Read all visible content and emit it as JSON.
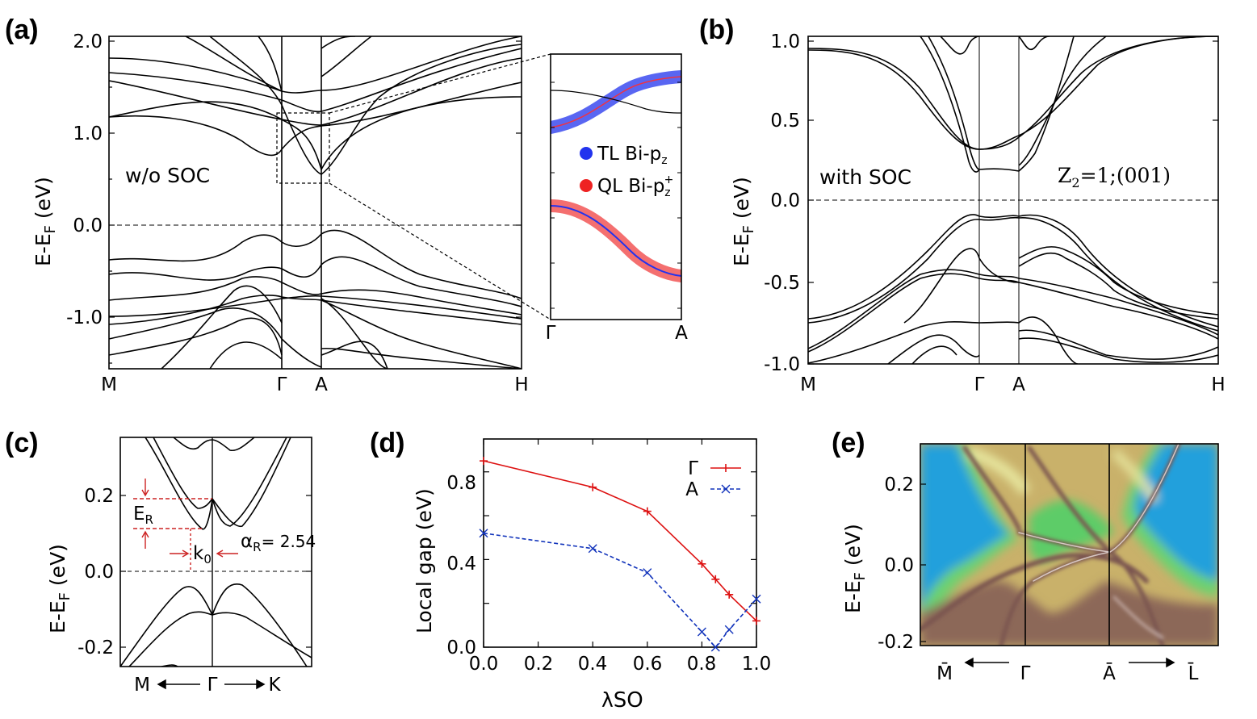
{
  "panels": {
    "a": {
      "label": "(a)",
      "ylabel": "E-E",
      "ylabel_sub": "F",
      "ylabel_unit": " (eV)",
      "annotation": "w/o SOC",
      "kpoints": [
        "M",
        "Γ",
        "A",
        "H"
      ],
      "yticks": [
        "2.0",
        "1.0",
        "0.0",
        "-1.0"
      ],
      "inset": {
        "kpoints": [
          "Γ",
          "A"
        ],
        "legend": [
          {
            "name": "TL Bi-p",
            "sub": "z",
            "sup": "",
            "color": "#2233ee"
          },
          {
            "name": "QL Bi-p",
            "sub": "z",
            "sup": "+",
            "color": "#ee2222"
          }
        ]
      }
    },
    "b": {
      "label": "(b)",
      "ylabel": "E-E",
      "ylabel_sub": "F",
      "ylabel_unit": " (eV)",
      "annotation": "with SOC",
      "z2_label": "Z",
      "z2_sub": "2",
      "z2_rest": "=1;(001)",
      "kpoints": [
        "M",
        "Γ",
        "A",
        "H"
      ],
      "yticks": [
        "1.0",
        "0.5",
        "0.0",
        "-0.5",
        "-1.0"
      ]
    },
    "c": {
      "label": "(c)",
      "ylabel": "E-E",
      "ylabel_sub": "F",
      "ylabel_unit": " (eV)",
      "yticks": [
        "0.2",
        "0.0",
        "-0.2"
      ],
      "kpoints": [
        "M",
        "Γ",
        "K"
      ],
      "er_label": "E",
      "er_sub": "R",
      "k0_label": "k",
      "k0_sub": "0",
      "alpha_label": "α",
      "alpha_sub": "R",
      "alpha_value": "= 2.54"
    },
    "d": {
      "label": "(d)",
      "ylabel": "Local gap (eV)",
      "xlabel": "λ",
      "xlabel_sub": "SO",
      "xticks": [
        "0.0",
        "0.2",
        "0.4",
        "0.6",
        "0.8",
        "1.0"
      ],
      "yticks": [
        "0.0",
        "0.4",
        "0.8"
      ]
    },
    "e": {
      "label": "(e)",
      "ylabel": "E-E",
      "ylabel_sub": "F",
      "ylabel_unit": " (eV)",
      "yticks": [
        "0.2",
        "0.0",
        "-0.2"
      ],
      "kpoints": [
        "M̄",
        "Γ̄",
        "Ā",
        "L̄"
      ]
    }
  },
  "chart_data": [
    {
      "panel": "d",
      "type": "line",
      "xlabel": "λSO",
      "ylabel": "Local gap (eV)",
      "xlim": [
        0.0,
        1.0
      ],
      "ylim": [
        0.0,
        0.95
      ],
      "legend_placement": "top-right",
      "series": [
        {
          "name": "Γ",
          "color": "#dd1111",
          "marker": "+",
          "dash": "solid",
          "x": [
            0.0,
            0.4,
            0.6,
            0.8,
            0.85,
            0.9,
            1.0
          ],
          "y": [
            0.85,
            0.73,
            0.62,
            0.38,
            0.31,
            0.24,
            0.12
          ]
        },
        {
          "name": "A",
          "color": "#1133bb",
          "marker": "x",
          "dash": "dashed",
          "x": [
            0.0,
            0.4,
            0.6,
            0.8,
            0.85,
            0.9,
            1.0
          ],
          "y": [
            0.52,
            0.45,
            0.34,
            0.07,
            0.0,
            0.08,
            0.22
          ]
        }
      ]
    },
    {
      "panel": "a",
      "type": "line",
      "ylabel": "E-EF (eV)",
      "ylim": [
        -1.55,
        2.0
      ],
      "categories": [
        "M",
        "Γ",
        "A",
        "H"
      ]
    },
    {
      "panel": "b",
      "type": "line",
      "ylabel": "E-EF (eV)",
      "ylim": [
        -1.0,
        1.0
      ],
      "categories": [
        "M",
        "Γ",
        "A",
        "H"
      ]
    },
    {
      "panel": "c",
      "type": "line",
      "ylabel": "E-EF (eV)",
      "ylim": [
        -0.25,
        0.35
      ],
      "categories": [
        "M",
        "Γ",
        "K"
      ]
    },
    {
      "panel": "e",
      "type": "heatmap",
      "ylabel": "E-EF (eV)",
      "ylim": [
        -0.2,
        0.3
      ],
      "categories": [
        "M̄",
        "Γ̄",
        "Ā",
        "L̄"
      ]
    }
  ]
}
